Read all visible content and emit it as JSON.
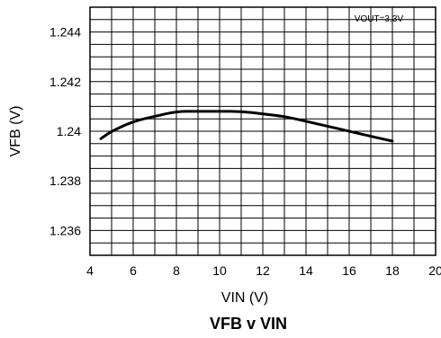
{
  "chart_data": {
    "type": "line",
    "title": "VFB v VIN",
    "xlabel": "VIN (V)",
    "ylabel": "VFB (V)",
    "annotation": "VOUT=3.3V",
    "xlim": [
      4,
      20
    ],
    "ylim": [
      1.235,
      1.245
    ],
    "x_ticks": [
      "4",
      "6",
      "8",
      "10",
      "12",
      "14",
      "16",
      "18",
      "20"
    ],
    "y_ticks": [
      "1.236",
      "1.238",
      "1.24",
      "1.242",
      "1.244"
    ],
    "grid": true,
    "series": [
      {
        "x": [
          4.5,
          5,
          6,
          7,
          8,
          9,
          10,
          11,
          12,
          13,
          14,
          15,
          16,
          17,
          18
        ],
        "values": [
          1.2397,
          1.24,
          1.2404,
          1.2406,
          1.2408,
          1.2408,
          1.2408,
          1.2408,
          1.2407,
          1.2406,
          1.2404,
          1.2402,
          1.24,
          1.2398,
          1.2396
        ],
        "color": "#000000"
      }
    ]
  }
}
